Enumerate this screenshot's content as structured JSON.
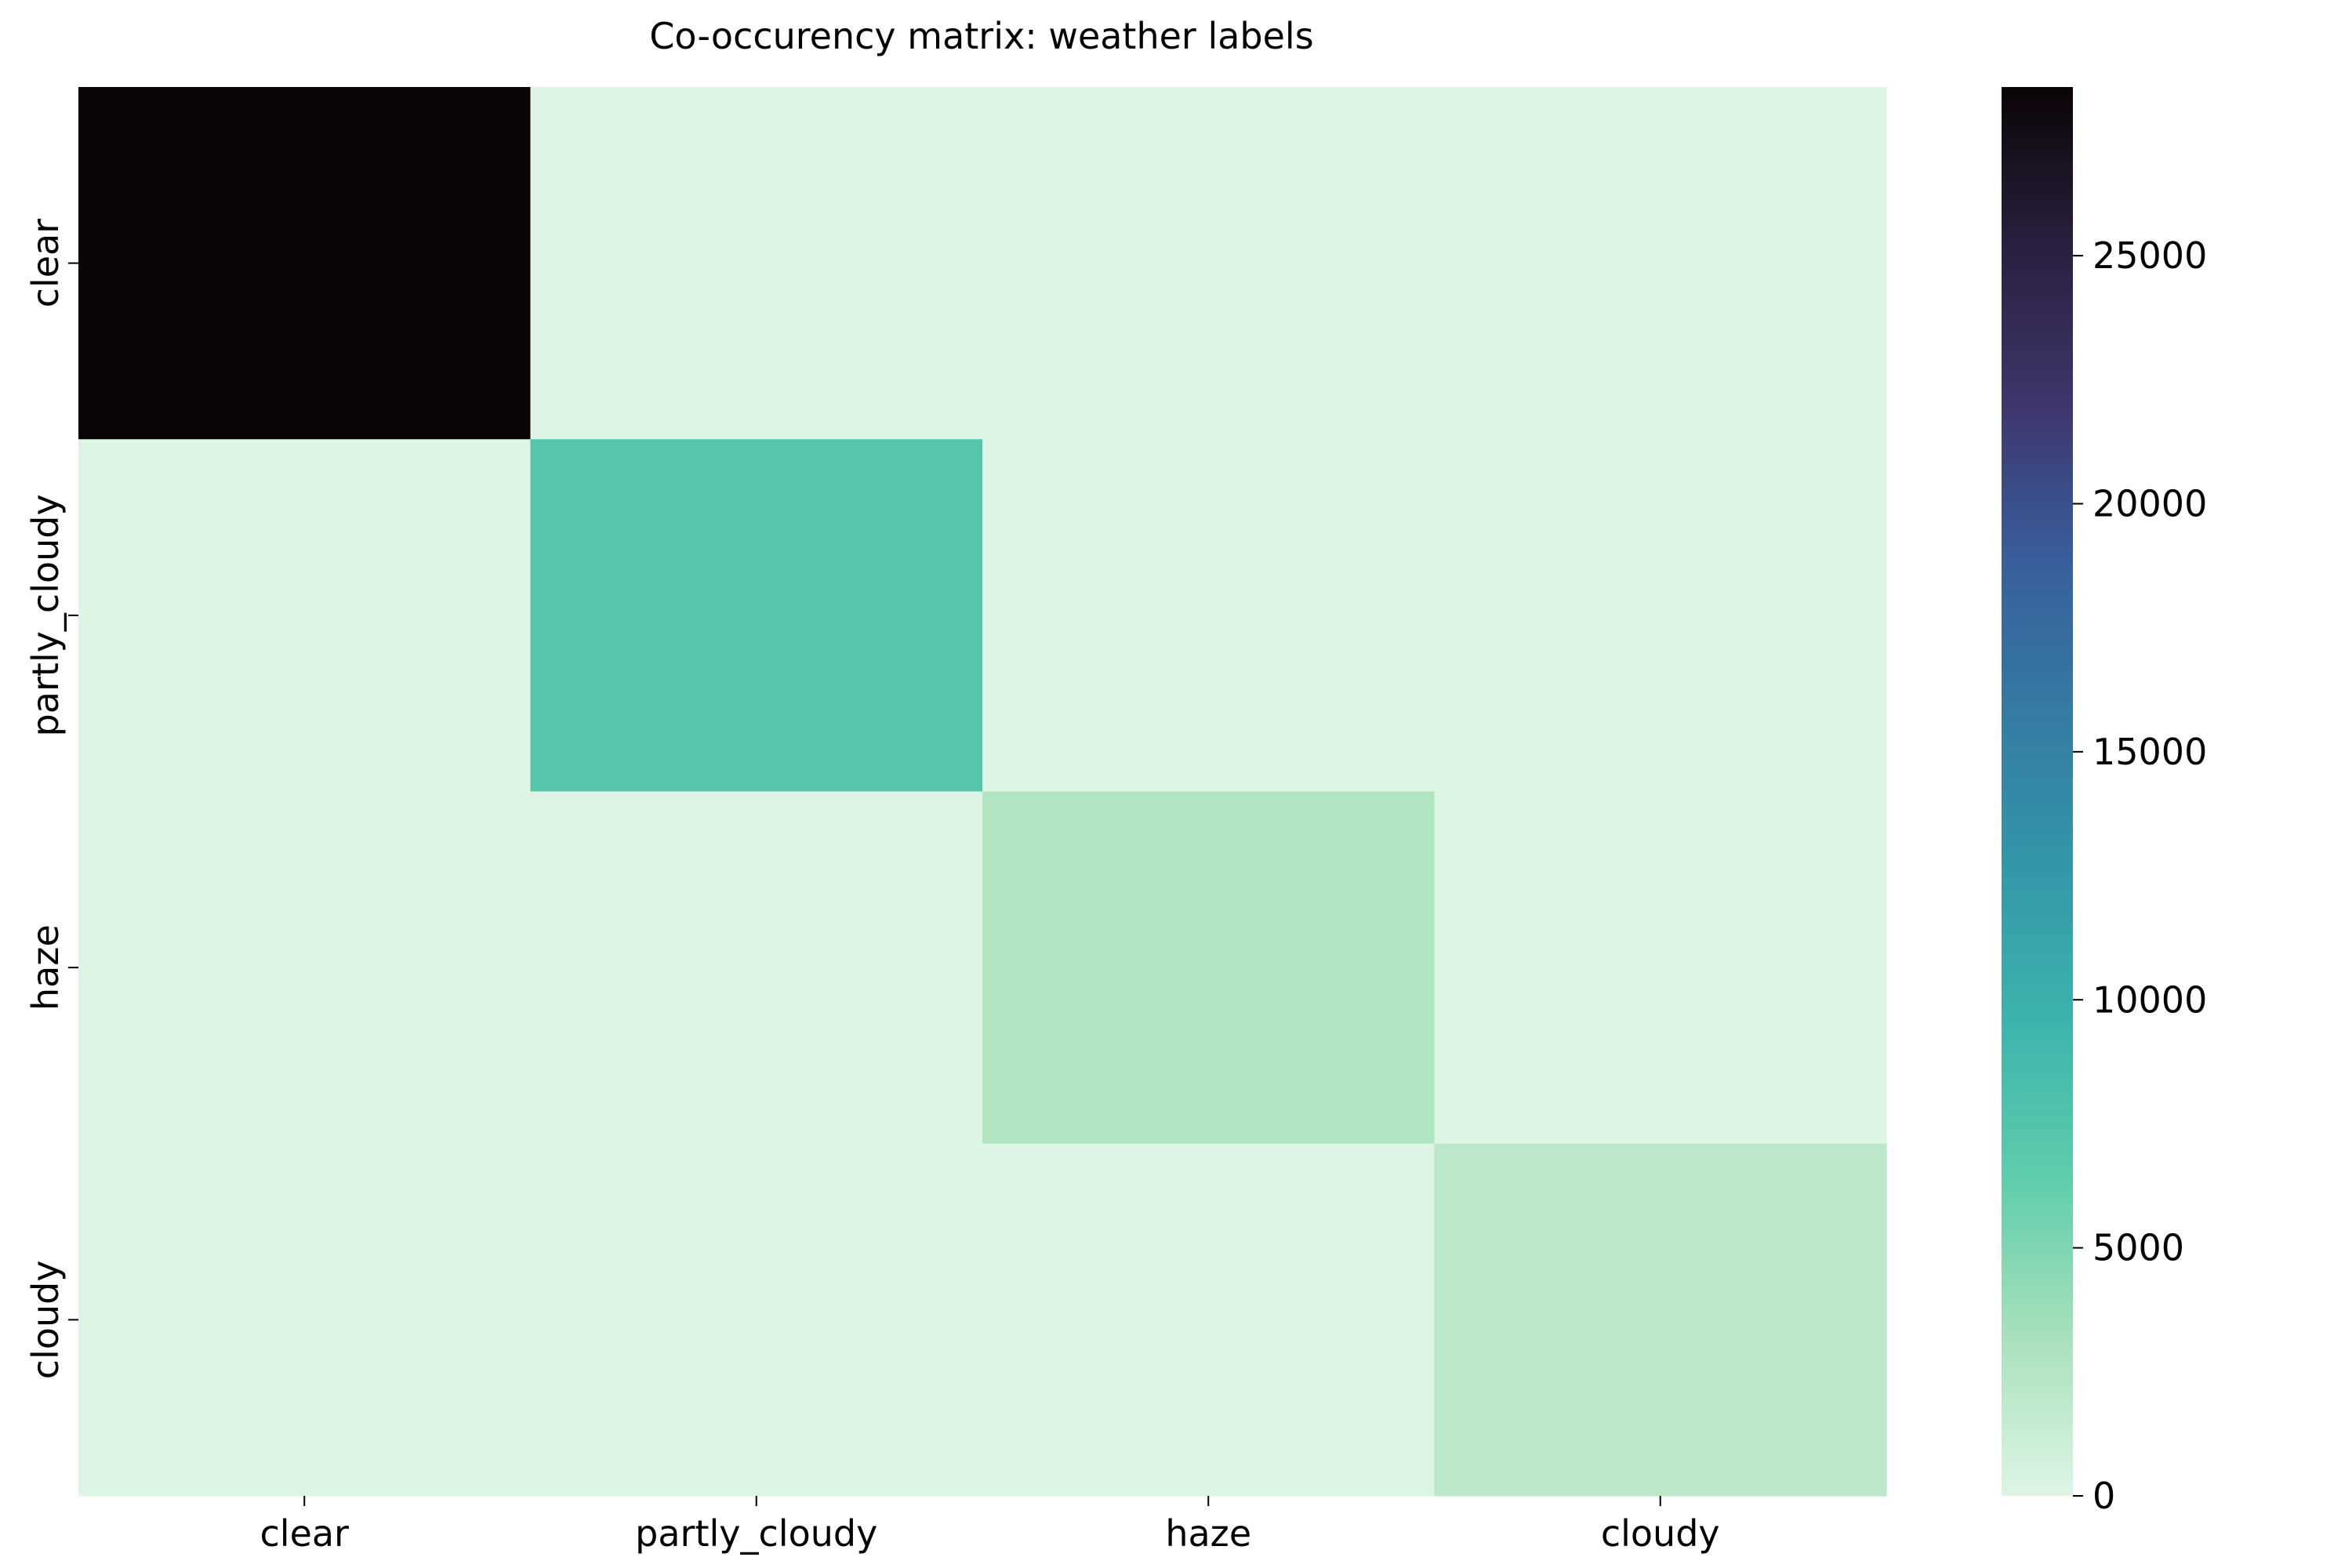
{
  "chart_data": {
    "type": "heatmap",
    "title": "Co-occurency matrix: weather labels",
    "xlabel": "",
    "ylabel": "",
    "x_categories": [
      "clear",
      "partly_cloudy",
      "haze",
      "cloudy"
    ],
    "y_categories": [
      "clear",
      "partly_cloudy",
      "haze",
      "cloudy"
    ],
    "values": [
      [
        28400,
        0,
        0,
        0
      ],
      [
        0,
        7260,
        0,
        0
      ],
      [
        0,
        0,
        2700,
        0
      ],
      [
        0,
        0,
        0,
        2090
      ]
    ],
    "colorbar": {
      "range": [
        0,
        28400
      ],
      "ticks": [
        0,
        5000,
        10000,
        15000,
        20000,
        25000
      ],
      "tick_labels": [
        "0",
        "5000",
        "10000",
        "15000",
        "20000",
        "25000"
      ]
    },
    "colormap": "mako_r",
    "colormap_stops": [
      "#def5e5",
      "#a9e1bb",
      "#60ceac",
      "#3db4ad",
      "#3497a9",
      "#357ba3",
      "#395d9c",
      "#3e356b",
      "#2a1f3e",
      "#0b0405"
    ],
    "grid": false,
    "legend": "colorbar-right"
  }
}
